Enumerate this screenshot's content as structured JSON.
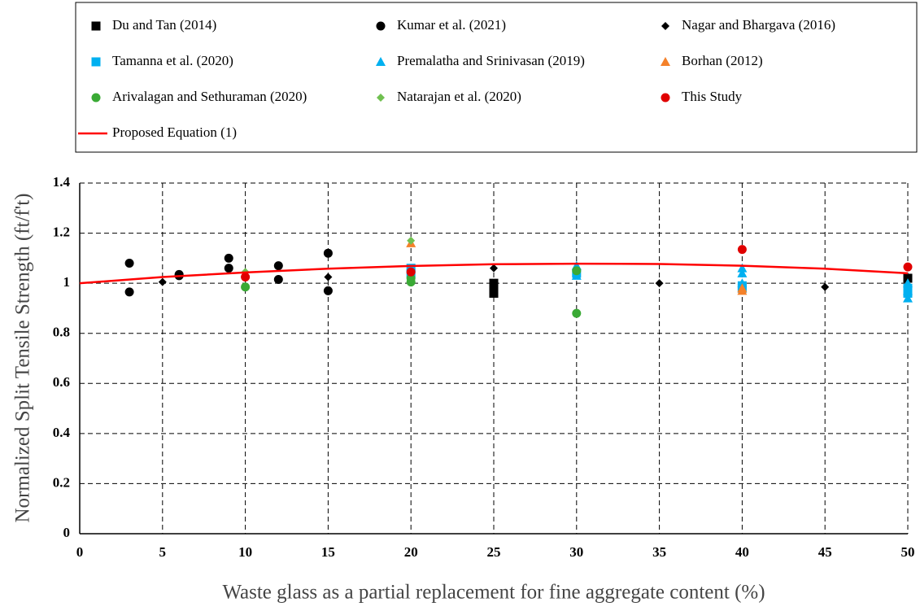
{
  "chart_data": {
    "type": "scatter",
    "xlabel": "Waste glass as a partial replacement for fine aggregate content (%)",
    "ylabel": "Normalized Split Tensile Strength (ft/f't)",
    "xlim": [
      0,
      50
    ],
    "xticks": [
      0,
      5,
      10,
      15,
      20,
      25,
      30,
      35,
      40,
      45,
      50
    ],
    "ylim": [
      0,
      1.4
    ],
    "yticks": [
      0,
      0.2,
      0.4,
      0.6,
      0.8,
      1,
      1.2,
      1.4
    ],
    "grid": true,
    "series": [
      {
        "name": "Du and Tan (2014)",
        "color": "#000000",
        "marker": "square",
        "x": [
          25,
          25,
          25,
          50,
          50
        ],
        "values": [
          1.0,
          0.98,
          0.96,
          1.02,
          0.97
        ]
      },
      {
        "name": "Kumar et al. (2021)",
        "color": "#000000",
        "marker": "circle",
        "x": [
          3,
          3,
          6,
          6,
          9,
          9,
          12,
          12,
          15,
          15
        ],
        "values": [
          1.08,
          0.965,
          1.03,
          1.035,
          1.1,
          1.06,
          1.07,
          1.015,
          1.12,
          0.97
        ]
      },
      {
        "name": "Nagar and Bhargava (2016)",
        "color": "#000000",
        "marker": "diamond",
        "x": [
          5,
          15,
          25,
          35,
          45,
          50
        ],
        "values": [
          1.005,
          1.025,
          1.06,
          1.0,
          0.985,
          0.99
        ]
      },
      {
        "name": "Tamanna et al. (2020)",
        "color": "#00b0f0",
        "marker": "square",
        "x": [
          20,
          20,
          30,
          40,
          40,
          50,
          50
        ],
        "values": [
          1.06,
          1.04,
          1.04,
          0.98,
          0.99,
          0.96,
          0.98
        ]
      },
      {
        "name": "Premalatha and Srinivasan (2019)",
        "color": "#00b0f0",
        "marker": "triangle",
        "x": [
          30,
          30,
          40,
          40,
          40,
          50,
          50,
          50
        ],
        "values": [
          1.07,
          1.03,
          1.06,
          1.04,
          1.0,
          1.0,
          0.97,
          0.94
        ]
      },
      {
        "name": "Borhan (2012)",
        "color": "#f4812a",
        "marker": "triangle",
        "x": [
          20,
          40,
          40
        ],
        "values": [
          1.16,
          0.98,
          0.97
        ]
      },
      {
        "name": "Arivalagan and Sethuraman (2020)",
        "color": "#3aaa35",
        "marker": "circle",
        "x": [
          10,
          20,
          20,
          30,
          30
        ],
        "values": [
          0.985,
          1.005,
          1.02,
          0.88,
          1.05
        ]
      },
      {
        "name": "Natarajan et al. (2020)",
        "color": "#70c050",
        "marker": "diamond",
        "x": [
          10,
          20
        ],
        "values": [
          1.045,
          1.17
        ]
      },
      {
        "name": "This Study",
        "color": "#e00000",
        "marker": "circle",
        "x": [
          10,
          20,
          40,
          50
        ],
        "values": [
          1.025,
          1.045,
          1.135,
          1.065
        ]
      },
      {
        "name": "Proposed Equation (1)",
        "color": "#ff0000",
        "marker": "line",
        "x": [
          0,
          5,
          10,
          15,
          20,
          25,
          30,
          35,
          40,
          45,
          50
        ],
        "values": [
          1.0,
          1.025,
          1.043,
          1.058,
          1.069,
          1.076,
          1.078,
          1.077,
          1.07,
          1.058,
          1.04
        ]
      }
    ]
  }
}
